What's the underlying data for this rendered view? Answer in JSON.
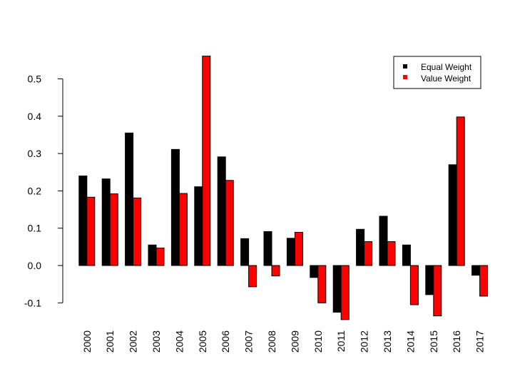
{
  "chart_data": {
    "type": "bar",
    "categories": [
      "2000",
      "2001",
      "2002",
      "2003",
      "2004",
      "2005",
      "2006",
      "2007",
      "2008",
      "2009",
      "2010",
      "2011",
      "2012",
      "2013",
      "2014",
      "2015",
      "2016",
      "2017"
    ],
    "series": [
      {
        "name": "Equal Weight",
        "color": "#000000",
        "values": [
          0.24,
          0.232,
          0.355,
          0.055,
          0.311,
          0.211,
          0.291,
          0.072,
          0.091,
          0.073,
          -0.032,
          -0.125,
          0.097,
          0.132,
          0.055,
          -0.078,
          0.27,
          -0.026
        ]
      },
      {
        "name": "Value Weight",
        "color": "#ff0000",
        "values": [
          0.183,
          0.192,
          0.181,
          0.047,
          0.193,
          0.561,
          0.228,
          -0.057,
          -0.028,
          0.089,
          -0.1,
          -0.145,
          0.064,
          0.064,
          -0.105,
          -0.135,
          0.398,
          -0.082
        ]
      }
    ],
    "yticks": [
      -0.1,
      0.0,
      0.1,
      0.2,
      0.3,
      0.4,
      0.5
    ],
    "ytick_labels": [
      "-0.1",
      "0.0",
      "0.1",
      "0.2",
      "0.3",
      "0.4",
      "0.5"
    ],
    "ylim": [
      -0.15,
      0.57
    ],
    "title": "",
    "xlabel": "",
    "ylabel": "",
    "legend": {
      "position": "top-right",
      "entries": [
        "Equal Weight",
        "Value Weight"
      ]
    },
    "grid": false
  }
}
